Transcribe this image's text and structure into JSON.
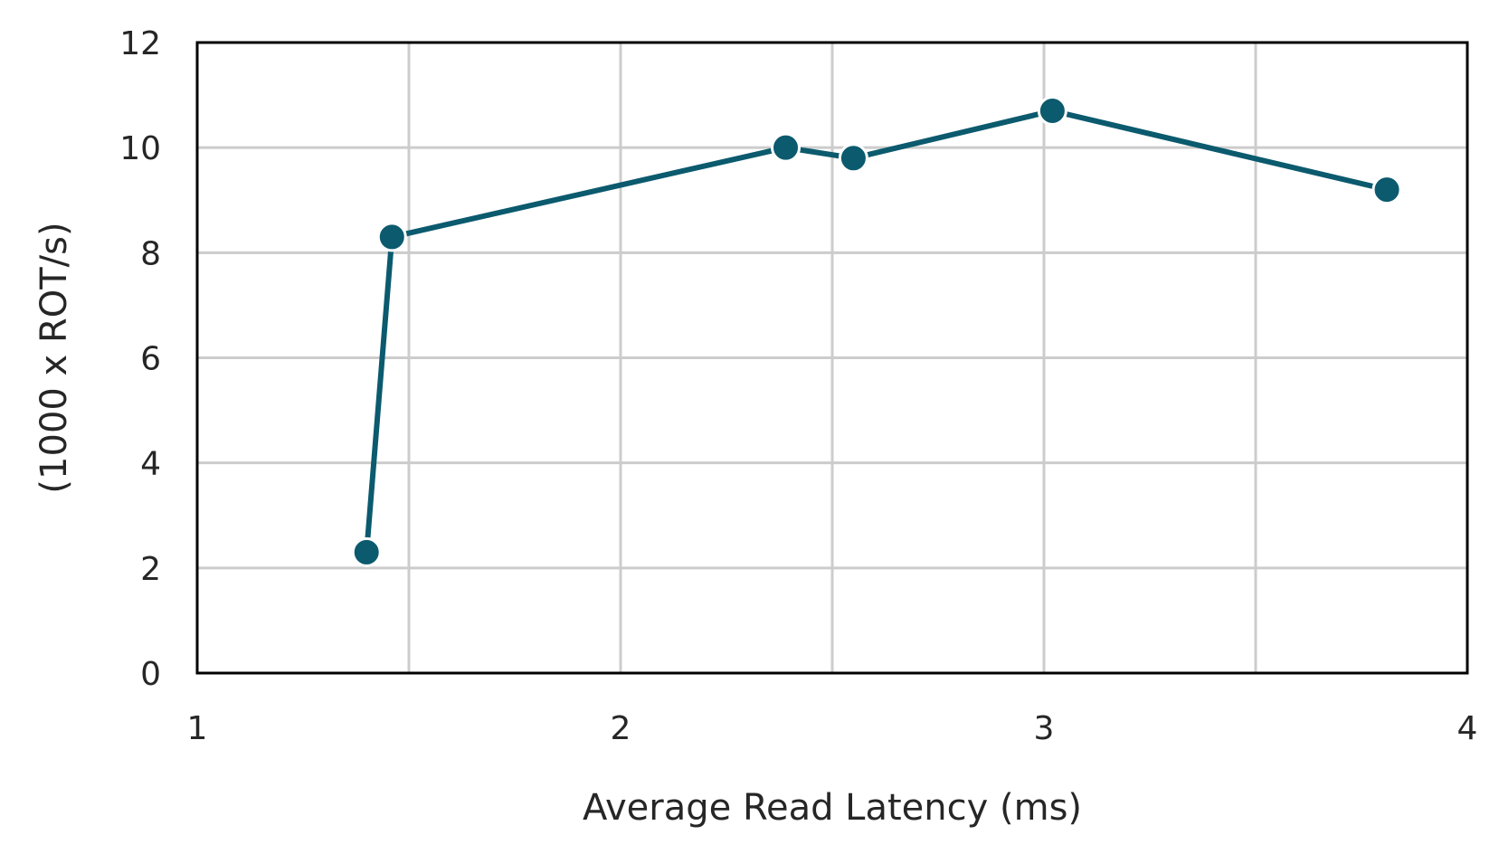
{
  "chart_data": {
    "type": "line",
    "title": "",
    "xlabel": "Average Read Latency (ms)",
    "ylabel": "(1000 x ROT/s)",
    "xlim": [
      1,
      4
    ],
    "ylim": [
      0,
      12
    ],
    "xticks": [
      1,
      2,
      3,
      4
    ],
    "yticks": [
      0,
      2,
      4,
      6,
      8,
      10,
      12
    ],
    "x_minor_gridlines": [
      1.5,
      2.5,
      3.5
    ],
    "grid": true,
    "legend": "none",
    "color": "#0b5a6e",
    "series": [
      {
        "points": [
          {
            "x": 1.4,
            "y": 2.3
          },
          {
            "x": 1.46,
            "y": 8.3
          },
          {
            "x": 2.39,
            "y": 10.0
          },
          {
            "x": 2.55,
            "y": 9.8
          },
          {
            "x": 3.02,
            "y": 10.7
          },
          {
            "x": 3.81,
            "y": 9.2
          }
        ]
      }
    ]
  }
}
